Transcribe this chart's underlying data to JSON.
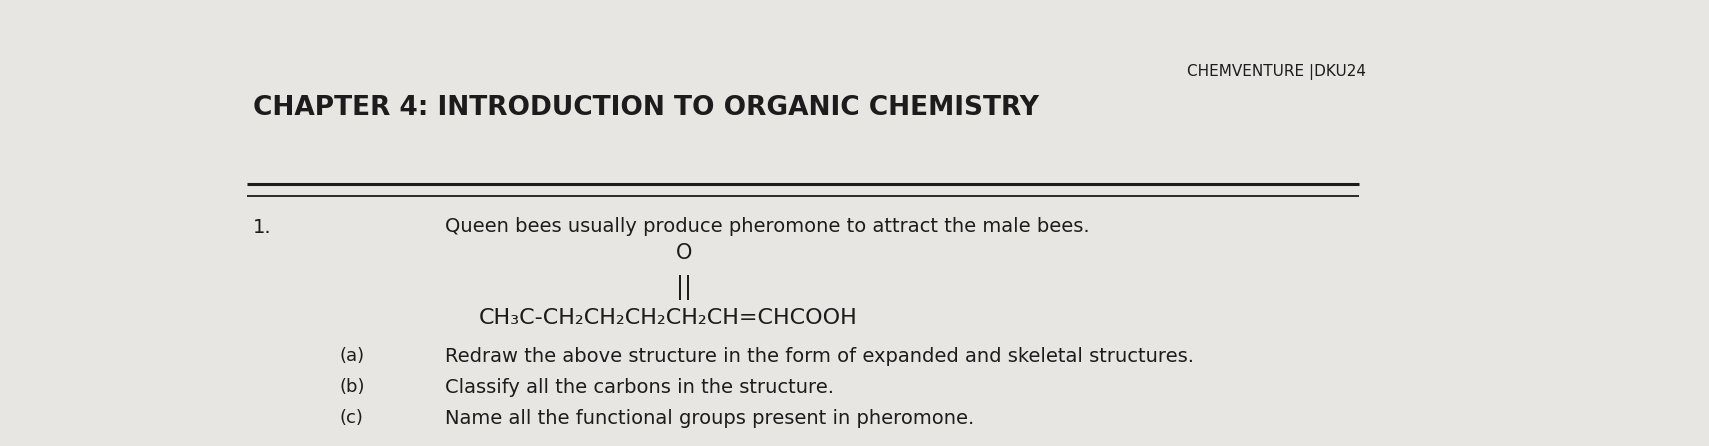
{
  "background_color": "#e8e6e3",
  "header_text": "CHEMVENTURE |DKU24",
  "chapter_title": "CHAPTER 4: INTRODUCTION TO ORGANIC CHEMISTRY",
  "number_text": "1.",
  "intro_text": "Queen bees usually produce pheromone to attract the male bees.",
  "oxygen_text": "O",
  "double_bond_text": "||",
  "formula_text": "CH₃C-CH₂CH₂CH₂CH₂CH=CHCOOH",
  "qa_label": "(a)",
  "qa_text": "Redraw the above structure in the form of expanded and skeletal structures.",
  "qb_label": "(b)",
  "qb_text": "Classify all the carbons in the structure.",
  "qc_label": "(c)",
  "qc_text": "Name all the functional groups present in pheromone.",
  "title_fontsize": 19,
  "header_fontsize": 11,
  "body_fontsize": 14,
  "formula_fontsize": 15,
  "small_fontsize": 13,
  "text_color": "#1c1c1c"
}
